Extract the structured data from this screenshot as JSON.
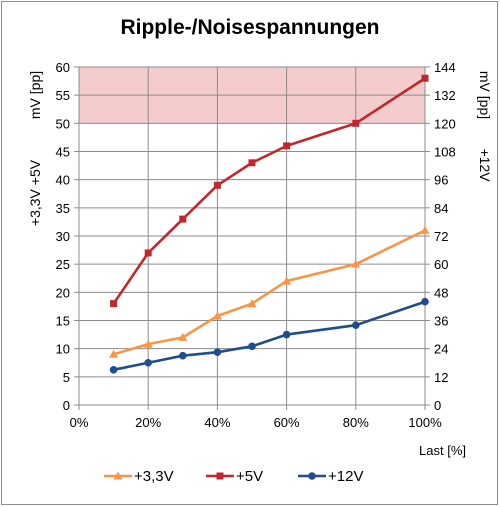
{
  "chart_data": {
    "type": "line",
    "title": "Ripple-/Noisespannungen",
    "xlabel": "Last [%]",
    "ylabel_left_rail": "+3,3V +5V",
    "ylabel_left_unit": "mV [pp]",
    "ylabel_right_rail": "+12V",
    "ylabel_right_unit": "mV [pp]",
    "x_ticks": [
      "0%",
      "20%",
      "40%",
      "60%",
      "80%",
      "100%"
    ],
    "xlim": [
      0,
      100
    ],
    "ylim_left": [
      0,
      60
    ],
    "ylim_right": [
      0,
      144
    ],
    "y_ticks_left": [
      "0",
      "5",
      "10",
      "15",
      "20",
      "25",
      "30",
      "35",
      "40",
      "45",
      "50",
      "55",
      "60"
    ],
    "y_ticks_right": [
      "0",
      "12",
      "24",
      "36",
      "48",
      "60",
      "72",
      "84",
      "96",
      "108",
      "120",
      "132",
      "144"
    ],
    "limit_band_left": [
      50,
      60
    ],
    "limit_band_color": "#f4cccc",
    "grid": true,
    "legend_position": "bottom",
    "series": [
      {
        "name": "+3,3V",
        "axis": "left",
        "color": "#f79646",
        "marker": "triangle",
        "x": [
          10,
          20,
          30,
          40,
          50,
          60,
          80,
          100
        ],
        "values": [
          9,
          10.8,
          12,
          15.8,
          18,
          22,
          25,
          31
        ]
      },
      {
        "name": "+5V",
        "axis": "left",
        "color": "#c0282d",
        "marker": "square",
        "x": [
          10,
          20,
          30,
          40,
          50,
          60,
          80,
          100
        ],
        "values": [
          18,
          27,
          33,
          39,
          43,
          46,
          50,
          58
        ]
      },
      {
        "name": "+12V",
        "axis": "right",
        "color": "#1f4e8c",
        "marker": "circle",
        "x": [
          10,
          20,
          30,
          40,
          50,
          60,
          80,
          100
        ],
        "values": [
          15,
          18,
          21,
          22.5,
          25,
          30,
          34,
          44
        ]
      }
    ]
  }
}
